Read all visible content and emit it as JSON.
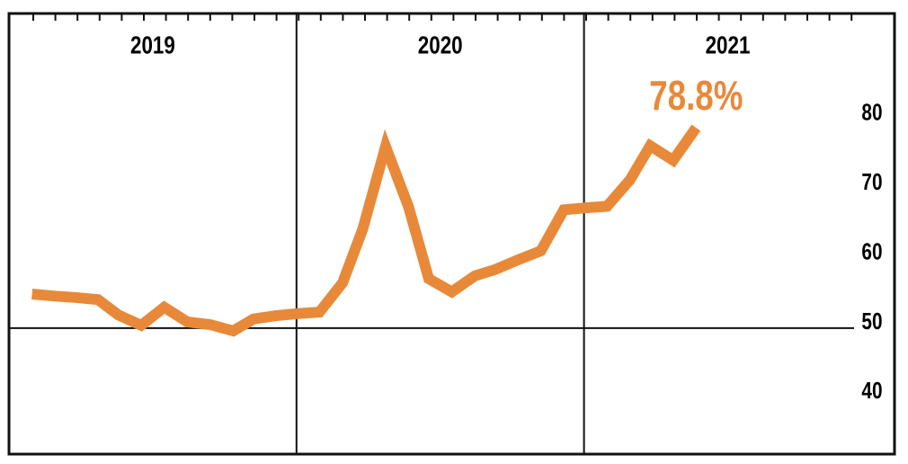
{
  "chart_data": {
    "type": "line",
    "x": [
      2019.08,
      2019.16,
      2019.23,
      2019.31,
      2019.38,
      2019.46,
      2019.54,
      2019.62,
      2019.7,
      2019.78,
      2019.85,
      2019.93,
      2020.01,
      2020.08,
      2020.16,
      2020.23,
      2020.31,
      2020.39,
      2020.46,
      2020.54,
      2020.62,
      2020.69,
      2020.77,
      2020.85,
      2020.93,
      2021.01,
      2021.08,
      2021.16,
      2021.23,
      2021.31,
      2021.39
    ],
    "values": [
      54.9,
      54.6,
      54.4,
      54.1,
      51.9,
      50.4,
      53.0,
      50.9,
      50.5,
      49.6,
      51.3,
      51.8,
      52.1,
      52.3,
      56.5,
      64.2,
      76.1,
      67.4,
      57.1,
      55.2,
      57.5,
      58.4,
      59.8,
      61.1,
      67.0,
      67.3,
      67.5,
      71.3,
      76.2,
      74.1,
      78.8
    ],
    "value_labels": [
      null,
      null,
      null,
      null,
      null,
      null,
      null,
      null,
      null,
      null,
      null,
      null,
      null,
      null,
      null,
      null,
      null,
      null,
      null,
      null,
      null,
      null,
      null,
      null,
      null,
      null,
      null,
      null,
      null,
      null,
      "78.8%"
    ],
    "color": "#e8893a",
    "xlim": [
      2019,
      2022.08
    ],
    "xticks": [
      2019,
      2020,
      2021
    ],
    "ylim": [
      31.9,
      95.2
    ],
    "yticks": [
      40,
      50,
      60,
      70,
      80
    ],
    "baseline": 50
  }
}
